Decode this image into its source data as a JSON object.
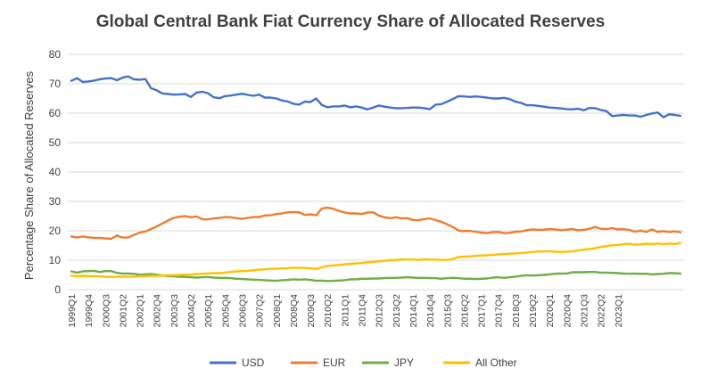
{
  "chart_data": {
    "type": "line",
    "title": "Global Central Bank Fiat Currency Share of Allocated Reserves",
    "xlabel": "",
    "ylabel": "Percentage Share of Allocated Reserves",
    "ylim": [
      0,
      80
    ],
    "yticks": [
      0,
      10,
      20,
      30,
      40,
      50,
      60,
      70,
      80
    ],
    "grid": "horizontal",
    "legend_position": "bottom",
    "x_tick_labels": [
      "1999Q1",
      "1999Q4",
      "2000Q3",
      "2001Q2",
      "2002Q1",
      "2002Q4",
      "2003Q3",
      "2004Q2",
      "2005Q1",
      "2005Q4",
      "2006Q3",
      "2007Q2",
      "2008Q1",
      "2008Q4",
      "2009Q3",
      "2010Q2",
      "2011Q1",
      "2011Q4",
      "2012Q3",
      "2013Q2",
      "2014Q1",
      "2014Q4",
      "2015Q3",
      "2016Q2",
      "2017Q1",
      "2017Q4",
      "2018Q3",
      "2019Q2",
      "2020Q1",
      "2020Q4",
      "2021Q3",
      "2022Q2",
      "2023Q1"
    ],
    "x_start": "1999Q1",
    "x_end": "2023Q4",
    "series": [
      {
        "name": "USD",
        "color": "#4472C4",
        "values": [
          71.0,
          71.9,
          70.6,
          70.8,
          71.1,
          71.5,
          71.8,
          71.9,
          71.2,
          72.1,
          72.5,
          71.5,
          71.4,
          71.6,
          68.5,
          67.8,
          66.7,
          66.5,
          66.3,
          66.4,
          66.5,
          65.5,
          67.0,
          67.3,
          66.8,
          65.4,
          65.1,
          65.8,
          66.0,
          66.3,
          66.6,
          66.2,
          65.9,
          66.3,
          65.3,
          65.3,
          65.0,
          64.3,
          64.0,
          63.2,
          62.9,
          63.9,
          63.8,
          65.0,
          62.8,
          62.0,
          62.3,
          62.3,
          62.6,
          62.0,
          62.3,
          61.9,
          61.3,
          61.9,
          62.6,
          62.2,
          61.9,
          61.7,
          61.7,
          61.8,
          61.9,
          61.9,
          61.7,
          61.4,
          62.9,
          63.1,
          63.9,
          64.8,
          65.8,
          65.7,
          65.5,
          65.7,
          65.5,
          65.3,
          65.0,
          65.0,
          65.2,
          64.8,
          63.9,
          63.5,
          62.7,
          62.7,
          62.5,
          62.2,
          61.9,
          61.8,
          61.6,
          61.4,
          61.3,
          61.5,
          61.0,
          61.8,
          61.7,
          61.1,
          60.7,
          59.0,
          59.2,
          59.4,
          59.2,
          59.2,
          58.8,
          59.4,
          59.9,
          60.2,
          58.6,
          59.6,
          59.4,
          59.1
        ]
      },
      {
        "name": "EUR",
        "color": "#ED7D31",
        "values": [
          18.1,
          17.7,
          18.1,
          17.8,
          17.6,
          17.6,
          17.4,
          17.3,
          18.4,
          17.7,
          17.7,
          18.6,
          19.4,
          19.8,
          20.6,
          21.5,
          22.5,
          23.5,
          24.4,
          24.8,
          25.0,
          24.6,
          24.9,
          23.9,
          23.9,
          24.2,
          24.4,
          24.7,
          24.6,
          24.3,
          24.1,
          24.4,
          24.7,
          24.7,
          25.2,
          25.3,
          25.7,
          25.9,
          26.3,
          26.4,
          26.3,
          25.4,
          25.6,
          25.3,
          27.6,
          27.9,
          27.5,
          26.8,
          26.2,
          25.9,
          25.9,
          25.7,
          26.2,
          26.3,
          25.2,
          24.6,
          24.3,
          24.6,
          24.2,
          24.3,
          23.7,
          23.6,
          24.0,
          24.2,
          23.6,
          23.1,
          22.2,
          21.3,
          20.1,
          19.9,
          20.0,
          19.7,
          19.4,
          19.2,
          19.5,
          19.6,
          19.2,
          19.3,
          19.7,
          19.8,
          20.2,
          20.5,
          20.3,
          20.4,
          20.6,
          20.5,
          20.2,
          20.4,
          20.6,
          20.2,
          20.3,
          20.7,
          21.3,
          20.7,
          20.6,
          20.9,
          20.5,
          20.6,
          20.3,
          19.7,
          20.1,
          19.6,
          20.5,
          19.6,
          19.9,
          19.6,
          19.8,
          19.5
        ]
      },
      {
        "name": "JPY",
        "color": "#70AD47",
        "values": [
          6.2,
          5.8,
          6.2,
          6.3,
          6.4,
          6.0,
          6.3,
          6.3,
          5.7,
          5.5,
          5.5,
          5.4,
          5.1,
          5.2,
          5.3,
          5.1,
          4.8,
          4.6,
          4.5,
          4.4,
          4.3,
          4.2,
          4.1,
          4.2,
          4.3,
          4.1,
          4.0,
          4.0,
          3.9,
          3.7,
          3.6,
          3.5,
          3.4,
          3.3,
          3.2,
          3.1,
          3.0,
          3.2,
          3.3,
          3.5,
          3.4,
          3.5,
          3.3,
          3.0,
          3.1,
          2.9,
          3.0,
          3.1,
          3.2,
          3.5,
          3.5,
          3.7,
          3.7,
          3.8,
          3.8,
          3.9,
          4.0,
          4.0,
          4.1,
          4.2,
          4.1,
          4.0,
          4.0,
          3.9,
          3.9,
          3.7,
          3.9,
          4.0,
          3.9,
          3.7,
          3.7,
          3.6,
          3.7,
          3.8,
          4.1,
          4.2,
          4.0,
          4.2,
          4.4,
          4.7,
          4.9,
          4.8,
          4.9,
          5.0,
          5.2,
          5.4,
          5.5,
          5.5,
          5.9,
          5.9,
          5.9,
          6.0,
          6.0,
          5.8,
          5.8,
          5.7,
          5.6,
          5.5,
          5.4,
          5.5,
          5.4,
          5.4,
          5.2,
          5.3,
          5.4,
          5.6,
          5.6,
          5.5
        ]
      },
      {
        "name": "All Other",
        "color": "#FFC000",
        "values": [
          4.8,
          4.6,
          4.7,
          4.6,
          4.6,
          4.5,
          4.4,
          4.3,
          4.4,
          4.4,
          4.4,
          4.4,
          4.5,
          4.6,
          4.7,
          4.7,
          4.8,
          4.9,
          4.9,
          5.0,
          5.1,
          5.1,
          5.3,
          5.4,
          5.5,
          5.6,
          5.6,
          5.8,
          6.0,
          6.2,
          6.3,
          6.4,
          6.6,
          6.8,
          6.9,
          7.1,
          7.1,
          7.2,
          7.3,
          7.5,
          7.4,
          7.4,
          7.2,
          7.0,
          7.6,
          8.0,
          8.2,
          8.4,
          8.6,
          8.8,
          8.9,
          9.1,
          9.3,
          9.4,
          9.6,
          9.8,
          10.0,
          10.1,
          10.3,
          10.2,
          10.2,
          10.1,
          10.3,
          10.2,
          10.2,
          10.1,
          10.1,
          10.4,
          11.1,
          11.2,
          11.3,
          11.5,
          11.6,
          11.7,
          11.8,
          12.0,
          12.1,
          12.2,
          12.3,
          12.5,
          12.6,
          12.8,
          13.0,
          13.0,
          13.1,
          12.9,
          12.8,
          12.9,
          13.0,
          13.3,
          13.6,
          13.8,
          14.1,
          14.5,
          14.8,
          15.1,
          15.2,
          15.4,
          15.6,
          15.3,
          15.4,
          15.6,
          15.5,
          15.7,
          15.4,
          15.7,
          15.5,
          15.9
        ]
      }
    ]
  }
}
